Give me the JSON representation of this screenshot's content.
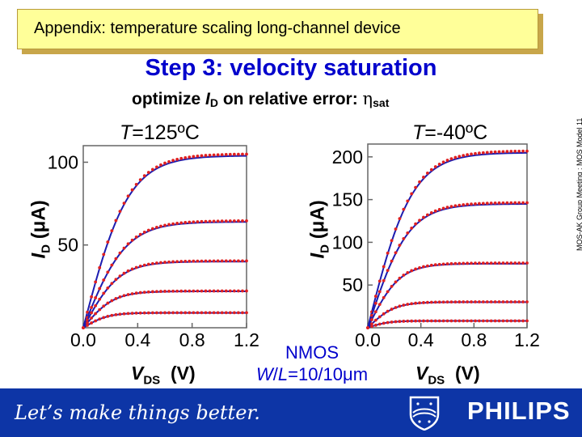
{
  "header": {
    "banner_title": "Appendix: temperature scaling long-channel device",
    "step_title": "Step 3: velocity saturation",
    "subtitle_prefix": "optimize ",
    "subtitle_I": "I",
    "subtitle_D": "D",
    "subtitle_mid": " on relative error: ",
    "subtitle_eta": "η",
    "subtitle_sat": "sat"
  },
  "device": {
    "line1": "NMOS",
    "line2_W": "W",
    "line2_rest": "/",
    "line2_L": "L",
    "line2_val": "=10/10",
    "line2_mu": "μ",
    "line2_unit": "m"
  },
  "side_note": "MOS-AK Group Meeting : MOS Model 11",
  "footer": {
    "slogan": "Let’s make things better.",
    "brand": "PHILIPS"
  },
  "colors": {
    "model_line": "#1c1cb0",
    "measured_marker": "#e02020",
    "banner": "#ffff99",
    "title": "#0000cc",
    "footer": "#0d35a6"
  },
  "chart_data": [
    {
      "type": "line",
      "title": "T=125ºC",
      "title_T": "T",
      "title_rest": "=125ºC",
      "xlabel": "V",
      "xlabel_sub": "DS",
      "xlabel_unit": "(V)",
      "ylabel": "I",
      "ylabel_sub": "D",
      "ylabel_unit": "(μA)",
      "xlim": [
        0,
        1.2
      ],
      "ylim": [
        0,
        110
      ],
      "xticks": [
        "0.0",
        "0.4",
        "0.8",
        "1.2"
      ],
      "yticks": [
        "50",
        "100"
      ],
      "ytick_values": [
        50,
        100
      ],
      "grid": false,
      "curves": [
        {
          "isat": 104,
          "k": 3.0
        },
        {
          "isat": 64,
          "k": 3.2
        },
        {
          "isat": 40,
          "k": 3.8
        },
        {
          "isat": 22,
          "k": 4.5
        },
        {
          "isat": 9,
          "k": 5.5
        }
      ]
    },
    {
      "type": "line",
      "title": "T=-40ºC",
      "title_T": "T",
      "title_rest": "=-40ºC",
      "xlabel": "V",
      "xlabel_sub": "DS",
      "xlabel_unit": "(V)",
      "ylabel": "I",
      "ylabel_sub": "D",
      "ylabel_unit": "(μA)",
      "xlim": [
        0,
        1.2
      ],
      "ylim": [
        0,
        215
      ],
      "xticks": [
        "0.0",
        "0.4",
        "0.8",
        "1.2"
      ],
      "yticks": [
        "50",
        "100",
        "150",
        "200"
      ],
      "ytick_values": [
        50,
        100,
        150,
        200
      ],
      "grid": false,
      "curves": [
        {
          "isat": 205,
          "k": 3.0
        },
        {
          "isat": 145,
          "k": 3.3
        },
        {
          "isat": 75,
          "k": 4.2
        },
        {
          "isat": 30,
          "k": 5.0
        },
        {
          "isat": 8,
          "k": 6.5
        }
      ]
    }
  ]
}
